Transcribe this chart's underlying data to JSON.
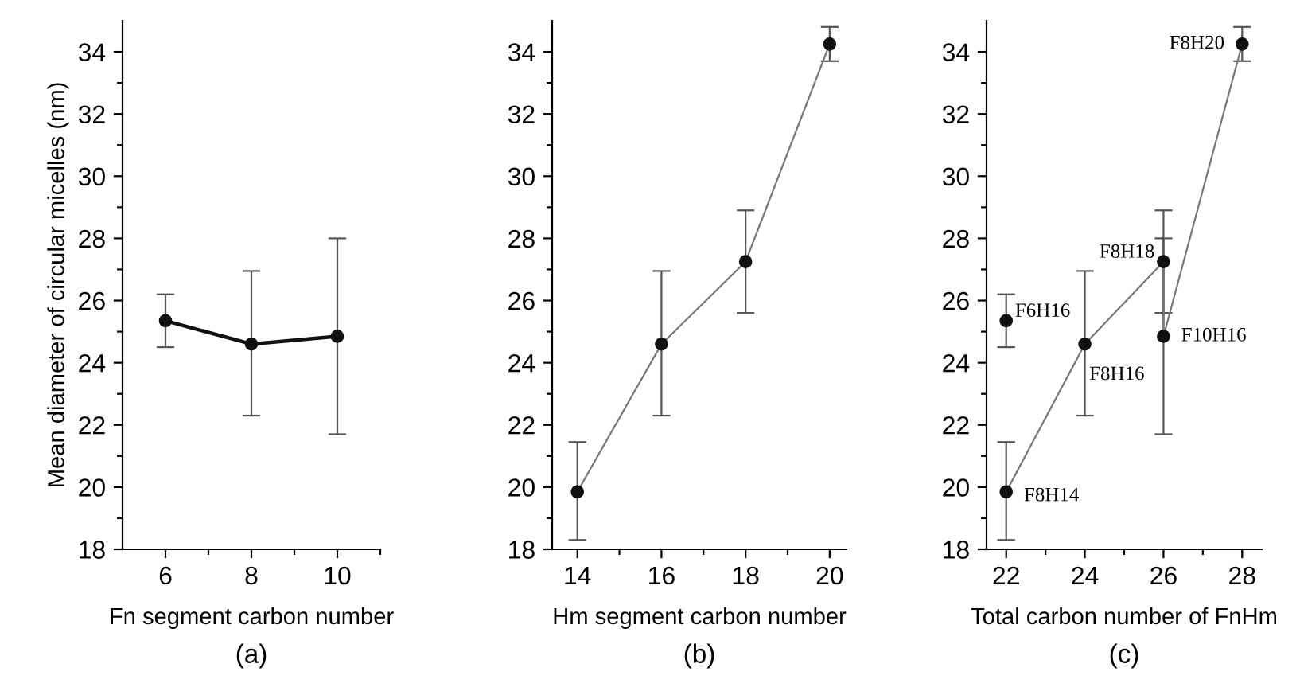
{
  "chart_data": [
    {
      "type": "line",
      "xlabel": "Fn segment carbon number",
      "ylabel": "Mean diameter of circular micelles (nm)",
      "annotations": [
        "(a)"
      ],
      "x": [
        6,
        8,
        10
      ],
      "marker": "circle",
      "line_style": "solid",
      "grid": false,
      "legend": false,
      "series": [
        {
          "color": "#111111",
          "values": [
            25.35,
            24.6,
            24.85
          ],
          "errors": [
            [
              24.5,
              26.2
            ],
            [
              22.3,
              26.95
            ],
            [
              21.7,
              28.0
            ]
          ]
        }
      ],
      "xlim": [
        5,
        11
      ],
      "xticks": [
        6,
        {
          "value": 7,
          "label": null
        },
        8,
        {
          "value": 9,
          "label": null
        },
        10,
        {
          "value": 11,
          "label": null
        }
      ],
      "ylim": [
        18,
        35
      ],
      "yticks": [
        18,
        {
          "value": 19,
          "label": null
        },
        20,
        {
          "value": 21,
          "label": null
        },
        22,
        {
          "value": 23,
          "label": null
        },
        24,
        {
          "value": 25,
          "label": null
        },
        26,
        {
          "value": 27,
          "label": null
        },
        28,
        {
          "value": 29,
          "label": null
        },
        30,
        {
          "value": 31,
          "label": null
        },
        32,
        {
          "value": 33,
          "label": null
        },
        34
      ]
    },
    {
      "type": "line",
      "xlabel": "Hm segment carbon number",
      "annotations": [
        "(b)"
      ],
      "x": [
        14,
        16,
        18,
        20
      ],
      "marker": "circle",
      "line_style": "solid",
      "grid": false,
      "legend": false,
      "series": [
        {
          "color": "#777777",
          "values": [
            19.85,
            24.6,
            27.25,
            34.25
          ],
          "errors": [
            [
              18.3,
              21.45
            ],
            [
              22.3,
              26.95
            ],
            [
              25.6,
              28.9
            ],
            [
              33.7,
              34.8
            ]
          ]
        }
      ],
      "xlim": [
        13.4,
        20.4
      ],
      "xticks": [
        14,
        {
          "value": 15,
          "label": null
        },
        16,
        {
          "value": 17,
          "label": null
        },
        18,
        {
          "value": 19,
          "label": null
        },
        20
      ],
      "ylim": [
        18,
        35
      ],
      "yticks": [
        18,
        {
          "value": 19,
          "label": null
        },
        20,
        {
          "value": 21,
          "label": null
        },
        22,
        {
          "value": 23,
          "label": null
        },
        24,
        {
          "value": 25,
          "label": null
        },
        26,
        {
          "value": 27,
          "label": null
        },
        28,
        {
          "value": 29,
          "label": null
        },
        30,
        {
          "value": 31,
          "label": null
        },
        32,
        {
          "value": 33,
          "label": null
        },
        34
      ]
    },
    {
      "type": "line",
      "xlabel": "Total carbon number of FnHm",
      "marker": "circle",
      "line_style": "solid",
      "grid": false,
      "legend": false,
      "series": [
        {
          "color": "#777777",
          "x": [
            22,
            24,
            26,
            26,
            28
          ],
          "values": [
            19.85,
            24.6,
            27.25,
            24.85,
            34.25
          ],
          "errors": [
            [
              18.3,
              21.45
            ],
            [
              22.3,
              26.95
            ],
            [
              25.6,
              28.9
            ],
            [
              21.7,
              28.0
            ],
            [
              33.7,
              34.8
            ]
          ]
        },
        {
          "type": "scatter",
          "color": "#111111",
          "x": [
            22
          ],
          "values": [
            25.35
          ],
          "errors": [
            [
              24.5,
              26.2
            ]
          ]
        }
      ],
      "annotations": [
        {
          "text": "F8H14",
          "x": 22,
          "y": 19.85
        },
        {
          "text": "F8H16",
          "x": 24,
          "y": 24.6
        },
        {
          "text": "F8H18",
          "x": 26,
          "y": 27.25
        },
        {
          "text": "F10H16",
          "x": 26,
          "y": 24.85
        },
        {
          "text": "F8H20",
          "x": 28,
          "y": 34.25
        },
        {
          "text": "F6H16",
          "x": 22,
          "y": 25.35
        },
        "(c)"
      ],
      "xlim": [
        21.5,
        28.5
      ],
      "xticks": [
        22,
        {
          "value": 23,
          "label": null
        },
        24,
        {
          "value": 25,
          "label": null
        },
        26,
        {
          "value": 27,
          "label": null
        },
        28
      ],
      "ylim": [
        18,
        35
      ],
      "yticks": [
        18,
        {
          "value": 19,
          "label": null
        },
        20,
        {
          "value": 21,
          "label": null
        },
        22,
        {
          "value": 23,
          "label": null
        },
        24,
        {
          "value": 25,
          "label": null
        },
        26,
        {
          "value": 27,
          "label": null
        },
        28,
        {
          "value": 29,
          "label": null
        },
        30,
        {
          "value": 31,
          "label": null
        },
        32,
        {
          "value": 33,
          "label": null
        },
        34
      ]
    }
  ]
}
